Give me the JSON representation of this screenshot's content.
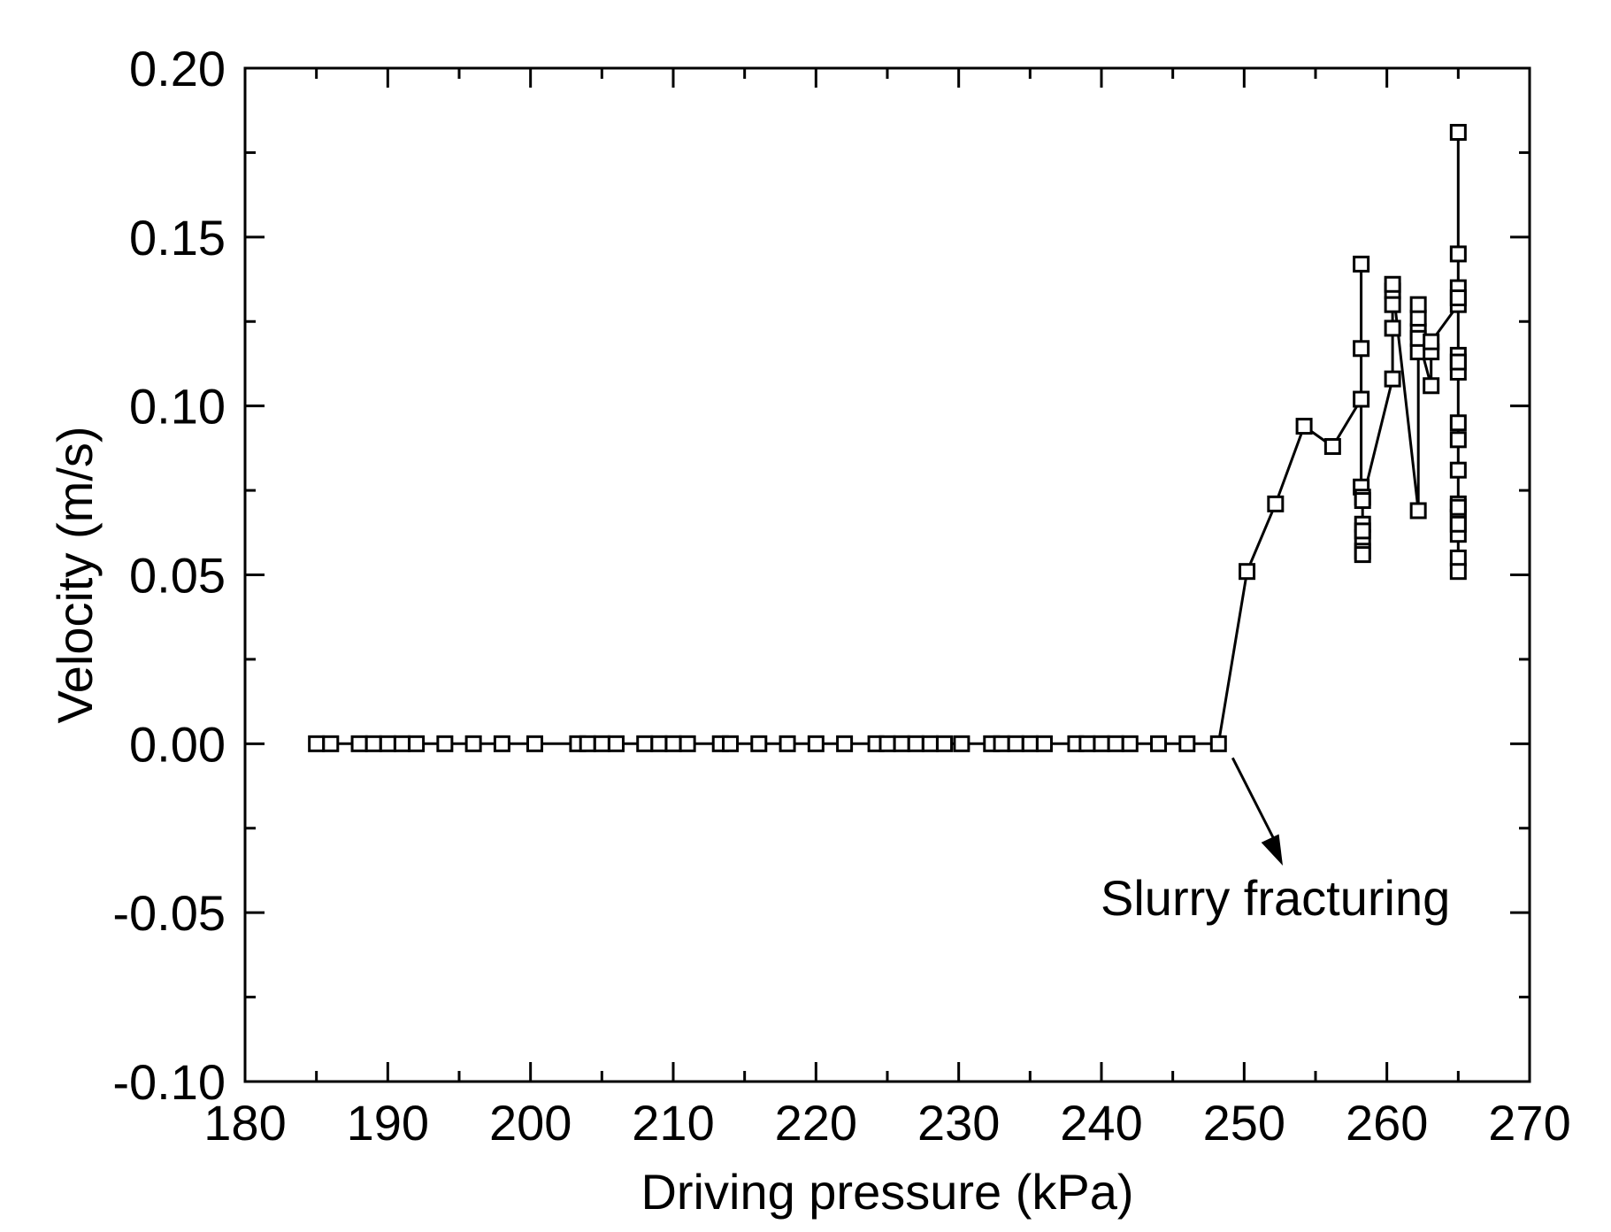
{
  "chart_data": {
    "type": "line",
    "title": "",
    "xlabel": "Driving pressure (kPa)",
    "ylabel": "Velocity (m/s)",
    "xlim": [
      180,
      270
    ],
    "ylim": [
      -0.1,
      0.2
    ],
    "xticks": [
      "180",
      "190",
      "200",
      "210",
      "220",
      "230",
      "240",
      "250",
      "260",
      "270"
    ],
    "yticks": [
      "-0.10",
      "-0.05",
      "0.00",
      "0.05",
      "0.10",
      "0.15",
      "0.20"
    ],
    "grid": false,
    "marker": "open-square",
    "line_color": "#000000",
    "annotation": {
      "text": "Slurry fracturing",
      "points_to": [
        248.2,
        0.0
      ]
    },
    "series": [
      {
        "x": [
          185,
          186,
          188,
          189,
          190,
          191,
          192,
          194,
          196,
          198,
          200.3,
          203.3,
          204,
          205,
          206,
          208,
          209,
          210,
          211,
          213.3,
          214,
          216,
          218,
          220,
          222,
          224.2,
          225,
          226,
          227,
          228,
          229,
          230.2,
          232.3,
          233,
          234,
          235,
          236,
          238.2,
          239,
          240,
          241,
          242,
          244,
          246,
          248.2,
          250.2,
          252.2,
          254.2,
          256.2,
          258.2,
          258.2,
          258.2,
          258.2,
          258.3,
          258.3,
          258.3,
          258.3,
          258.3,
          258.3,
          258.3,
          260.4,
          260.4,
          260.4,
          260.4,
          260.4,
          262.2,
          262.2,
          262.2,
          262.2,
          262.2,
          262.2,
          263.1,
          263.1,
          263.1,
          265,
          265,
          265,
          265,
          265,
          265,
          265,
          265,
          265,
          265,
          265,
          265,
          265,
          265,
          265,
          265,
          265,
          265
        ],
        "y": [
          0,
          0,
          0,
          0,
          0,
          0,
          0,
          0,
          0,
          0,
          0,
          0,
          0,
          0,
          0,
          0,
          0,
          0,
          0,
          0,
          0,
          0,
          0,
          0,
          0,
          0,
          0,
          0,
          0,
          0,
          0,
          0,
          0,
          0,
          0,
          0,
          0,
          0,
          0,
          0,
          0,
          0,
          0,
          0,
          0,
          0.051,
          0.071,
          0.094,
          0.088,
          0.102,
          0.142,
          0.117,
          0.076,
          0.073,
          0.065,
          0.061,
          0.057,
          0.056,
          0.063,
          0.072,
          0.108,
          0.134,
          0.13,
          0.123,
          0.136,
          0.069,
          0.116,
          0.122,
          0.126,
          0.13,
          0.12,
          0.106,
          0.116,
          0.119,
          0.13,
          0.135,
          0.145,
          0.181,
          0.132,
          0.115,
          0.11,
          0.095,
          0.09,
          0.081,
          0.071,
          0.067,
          0.062,
          0.055,
          0.051,
          0.065,
          0.07,
          0.113
        ]
      }
    ]
  }
}
